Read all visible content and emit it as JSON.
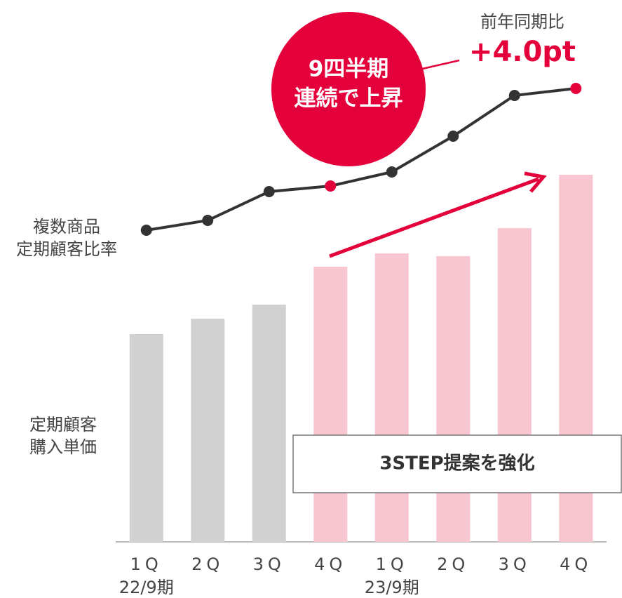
{
  "chart_data": {
    "type": "bar_line",
    "categories": [
      "1Q",
      "2Q",
      "3Q",
      "4Q",
      "1Q",
      "2Q",
      "3Q",
      "4Q"
    ],
    "periods": [
      {
        "label": "22/9期",
        "index": 0
      },
      {
        "label": "23/9期",
        "index": 4
      }
    ],
    "bar_label": [
      "定期顧客",
      "購入単価"
    ],
    "line_label": [
      "複数商品",
      "定期顧客比率"
    ],
    "series": [
      {
        "name": "定期顧客購入単価",
        "values": [
          296,
          318,
          338,
          392,
          411,
          407,
          447,
          523
        ],
        "colors": [
          "#d1d1d1",
          "#d1d1d1",
          "#d1d1d1",
          "#f8c6d0",
          "#f8c6d0",
          "#f8c6d0",
          "#f8c6d0",
          "#f8c6d0"
        ]
      },
      {
        "name": "複数商品定期顧客比率",
        "axis": "y2",
        "color": "#333333",
        "values": [
          444,
          458,
          499,
          507,
          527,
          578,
          636,
          646
        ],
        "marker_colors": [
          "#333333",
          "#333333",
          "#333333",
          "#e4003a",
          "#333333",
          "#333333",
          "#333333",
          "#e4003a"
        ]
      }
    ],
    "ylim": [
      0,
      720
    ],
    "y2lim": [
      0,
      720
    ],
    "annotations": {
      "badge": [
        "9四半期",
        "連続で上昇"
      ],
      "yoy_caption": "前年同期比",
      "yoy_value": "+4.0pt",
      "box": "3STEP提案を強化"
    }
  }
}
